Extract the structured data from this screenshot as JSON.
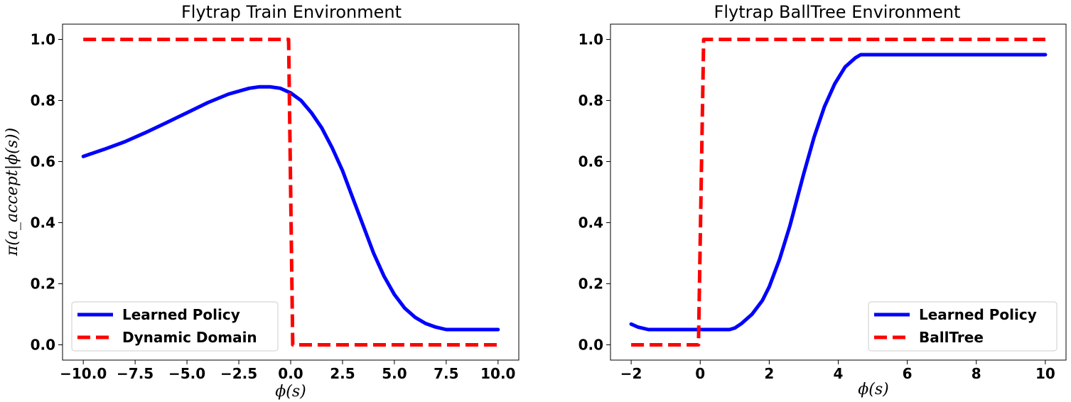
{
  "chart_data": [
    {
      "type": "line",
      "title": "Flytrap Train Environment",
      "xlabel": "ϕ(s)",
      "ylabel": "π(a_accept|ϕ(s))",
      "xlim": [
        -11.0,
        11.0
      ],
      "ylim": [
        -0.05,
        1.05
      ],
      "xticks": [
        -10.0,
        -7.5,
        -5.0,
        -2.5,
        0.0,
        2.5,
        5.0,
        7.5,
        10.0
      ],
      "xtick_labels": [
        "−10.0",
        "−7.5",
        "−5.0",
        "−2.5",
        "0.0",
        "2.5",
        "5.0",
        "7.5",
        "10.0"
      ],
      "yticks": [
        0.0,
        0.2,
        0.4,
        0.6,
        0.8,
        1.0
      ],
      "ytick_labels": [
        "0.0",
        "0.2",
        "0.4",
        "0.6",
        "0.8",
        "1.0"
      ],
      "grid": false,
      "legend_position": "lower-left",
      "series": [
        {
          "name": "Learned Policy",
          "style": "solid",
          "color": "#0000ff",
          "x": [
            -10,
            -9,
            -8,
            -7,
            -6,
            -5,
            -4,
            -3,
            -2,
            -1.5,
            -1,
            -0.5,
            0,
            0.5,
            1,
            1.5,
            2,
            2.5,
            3,
            3.5,
            4,
            4.5,
            5,
            5.5,
            6,
            6.5,
            7,
            7.5,
            10
          ],
          "y": [
            0.617,
            0.64,
            0.665,
            0.695,
            0.727,
            0.76,
            0.793,
            0.821,
            0.84,
            0.845,
            0.845,
            0.84,
            0.825,
            0.8,
            0.76,
            0.71,
            0.645,
            0.57,
            0.48,
            0.39,
            0.3,
            0.225,
            0.165,
            0.12,
            0.09,
            0.07,
            0.058,
            0.05,
            0.05
          ]
        },
        {
          "name": "Dynamic Domain",
          "style": "dashed",
          "color": "#ff0000",
          "x": [
            -10,
            -0.1,
            0.1,
            10
          ],
          "y": [
            1.0,
            1.0,
            0.0,
            0.0
          ]
        }
      ]
    },
    {
      "type": "line",
      "title": "Flytrap BallTree Environment",
      "xlabel": "ϕ(s)",
      "ylabel": "",
      "xlim": [
        -2.6,
        10.6
      ],
      "ylim": [
        -0.05,
        1.05
      ],
      "xticks": [
        -2,
        0,
        2,
        4,
        6,
        8,
        10
      ],
      "xtick_labels": [
        "−2",
        "0",
        "2",
        "4",
        "6",
        "8",
        "10"
      ],
      "yticks": [
        0.0,
        0.2,
        0.4,
        0.6,
        0.8,
        1.0
      ],
      "ytick_labels": [
        "0.0",
        "0.2",
        "0.4",
        "0.6",
        "0.8",
        "1.0"
      ],
      "grid": false,
      "legend_position": "lower-right",
      "series": [
        {
          "name": "Learned Policy",
          "style": "solid",
          "color": "#0000ff",
          "x": [
            -2,
            -1.8,
            -1.5,
            -1,
            0,
            0.5,
            0.85,
            1.0,
            1.2,
            1.5,
            1.8,
            2.0,
            2.3,
            2.6,
            3.0,
            3.3,
            3.6,
            3.9,
            4.2,
            4.5,
            4.65,
            10
          ],
          "y": [
            0.068,
            0.058,
            0.05,
            0.05,
            0.05,
            0.05,
            0.05,
            0.055,
            0.07,
            0.1,
            0.145,
            0.19,
            0.28,
            0.39,
            0.56,
            0.68,
            0.78,
            0.855,
            0.91,
            0.94,
            0.95,
            0.95
          ]
        },
        {
          "name": "BallTree",
          "style": "dashed",
          "color": "#ff0000",
          "x": [
            -2,
            -0.05,
            0.1,
            10
          ],
          "y": [
            0.0,
            0.0,
            1.0,
            1.0
          ]
        }
      ]
    }
  ]
}
